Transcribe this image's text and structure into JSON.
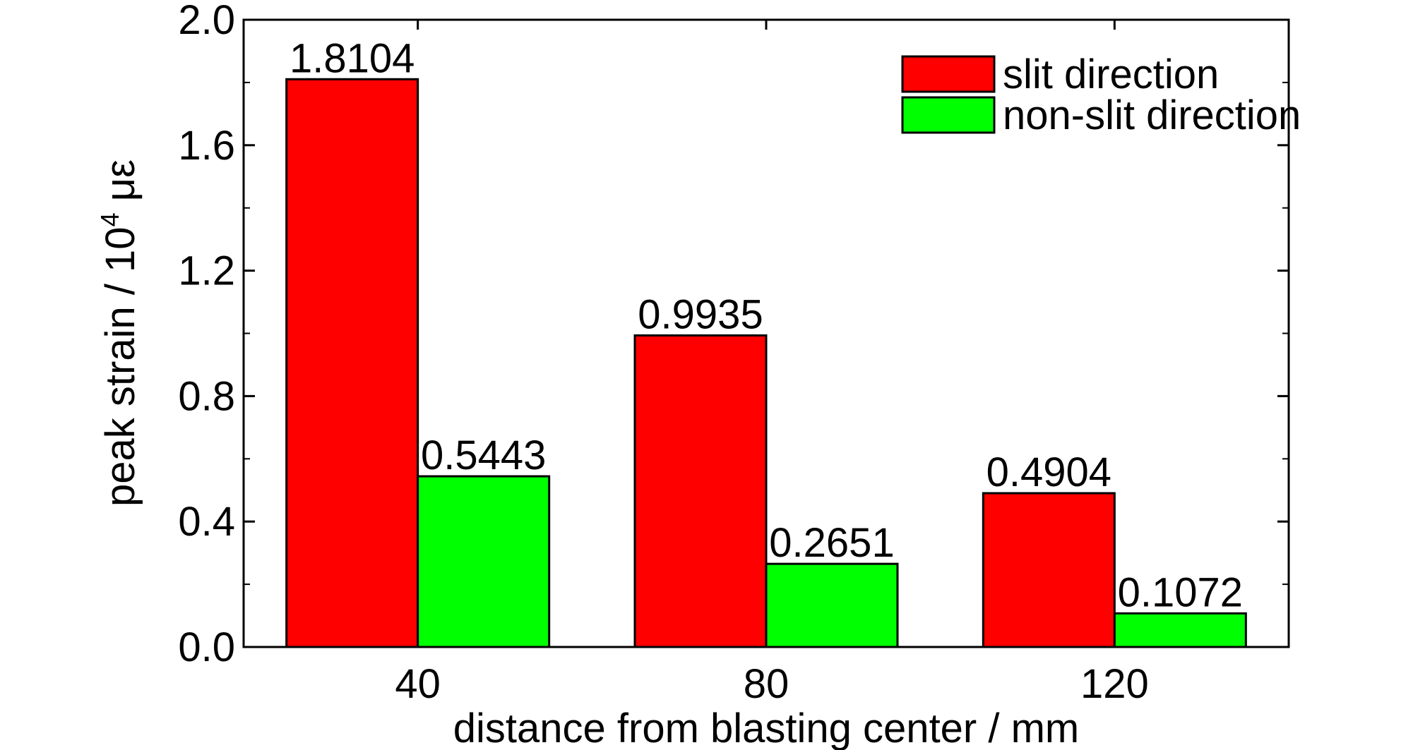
{
  "chart_data": {
    "type": "bar",
    "categories": [
      "40",
      "80",
      "120"
    ],
    "series": [
      {
        "name": "slit direction",
        "values": [
          1.8104,
          0.9935,
          0.4904
        ],
        "labels": [
          "1.8104",
          "0.9935",
          "0.4904"
        ],
        "color": "#ff0000"
      },
      {
        "name": "non-slit direction",
        "values": [
          0.5443,
          0.2651,
          0.1072
        ],
        "labels": [
          "0.5443",
          "0.2651",
          "0.1072"
        ],
        "color": "#00ff00"
      }
    ],
    "xlabel": "distance from blasting center / mm",
    "ylabel": {
      "main": "peak strain / 10",
      "sup": "4",
      "unit": " με"
    },
    "ylim": [
      0,
      2.0
    ],
    "yticks": [
      "0.0",
      "0.4",
      "0.8",
      "1.2",
      "1.6",
      "2.0"
    ],
    "grid": false,
    "legend_position": "top-right"
  }
}
